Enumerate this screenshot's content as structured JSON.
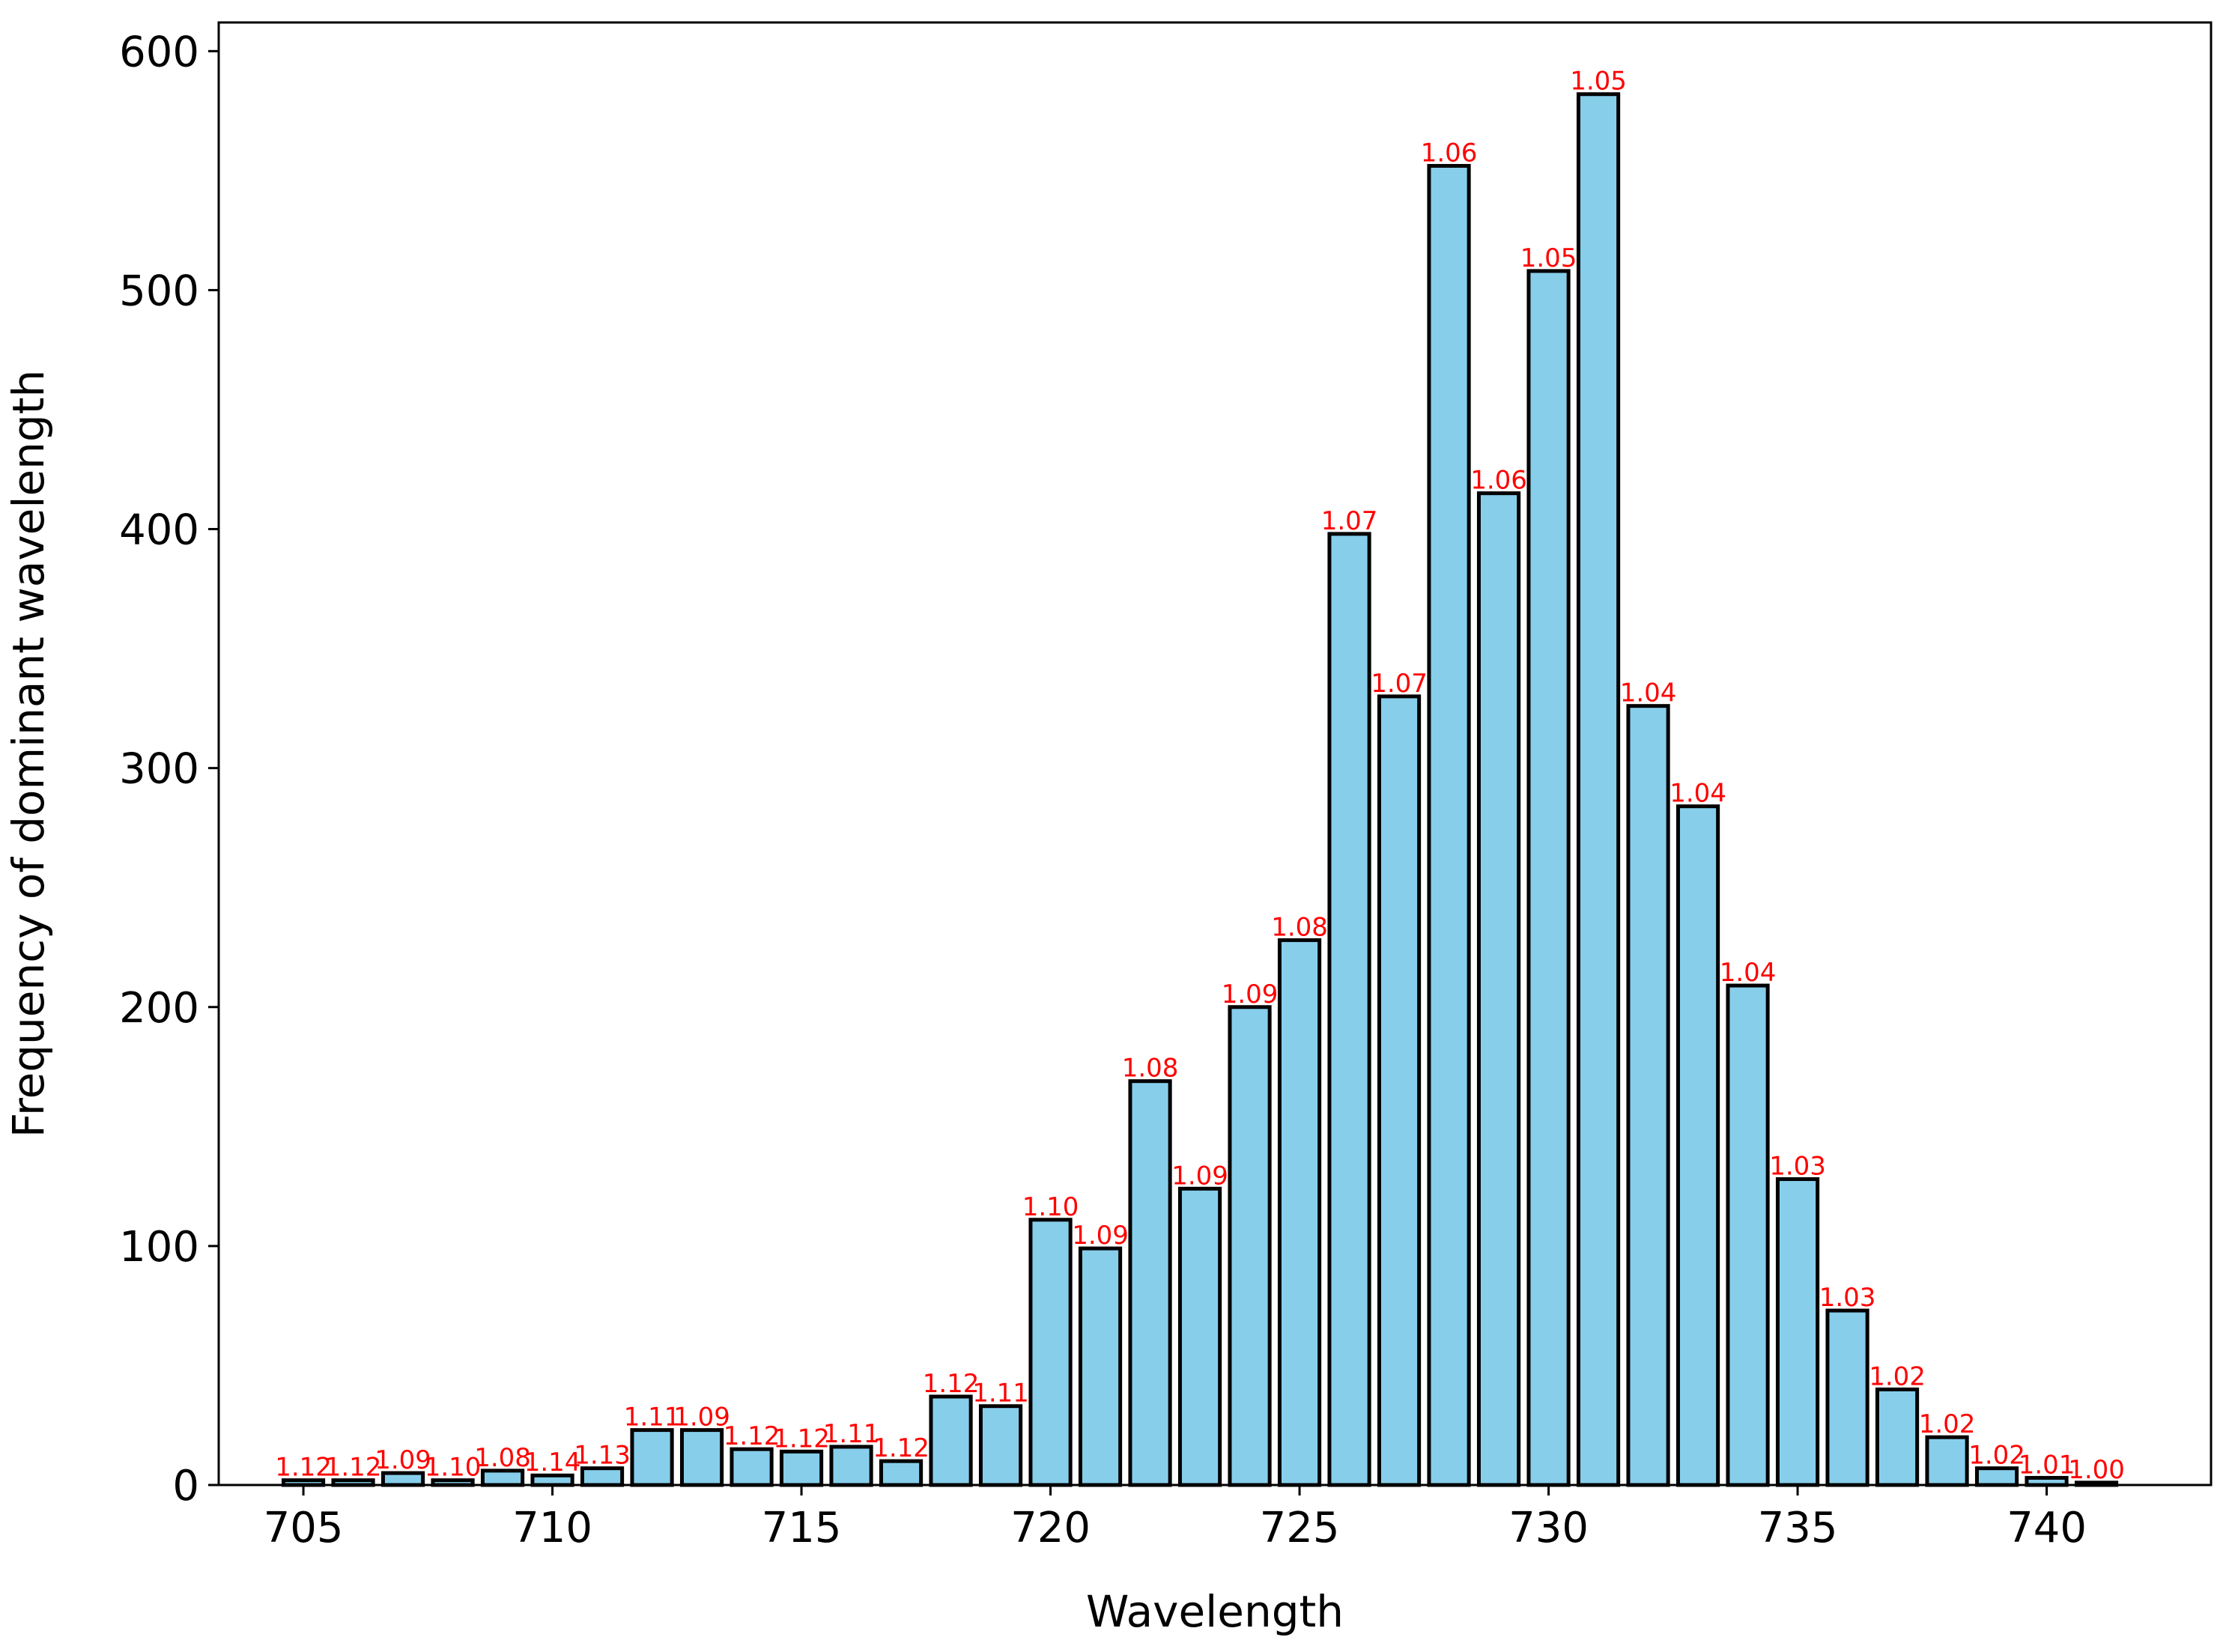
{
  "chart_data": {
    "type": "bar",
    "xlabel": "Wavelength",
    "ylabel": "Frequency of dominant wavelength",
    "xlim": [
      703.3,
      743.3
    ],
    "ylim": [
      0,
      612
    ],
    "xticks": [
      705,
      710,
      715,
      720,
      725,
      730,
      735,
      740
    ],
    "yticks": [
      0,
      100,
      200,
      300,
      400,
      500,
      600
    ],
    "grid": false,
    "legend": "none",
    "colors": {
      "bar_fill": "#87CEEB",
      "bar_edge": "#000000",
      "bar_label": "#FF0000"
    },
    "bars": [
      {
        "x": 705,
        "value": 2,
        "label": "1.12"
      },
      {
        "x": 706,
        "value": 2,
        "label": "1.12"
      },
      {
        "x": 707,
        "value": 5,
        "label": "1.09"
      },
      {
        "x": 708,
        "value": 2,
        "label": "1.10"
      },
      {
        "x": 709,
        "value": 6,
        "label": "1.08"
      },
      {
        "x": 710,
        "value": 4,
        "label": "1.14"
      },
      {
        "x": 711,
        "value": 7,
        "label": "1.13"
      },
      {
        "x": 712,
        "value": 23,
        "label": "1.11"
      },
      {
        "x": 713,
        "value": 23,
        "label": "1.09"
      },
      {
        "x": 714,
        "value": 15,
        "label": "1.12"
      },
      {
        "x": 715,
        "value": 14,
        "label": "1.12"
      },
      {
        "x": 716,
        "value": 16,
        "label": "1.11"
      },
      {
        "x": 717,
        "value": 10,
        "label": "1.12"
      },
      {
        "x": 718,
        "value": 37,
        "label": "1.12"
      },
      {
        "x": 719,
        "value": 33,
        "label": "1.11"
      },
      {
        "x": 720,
        "value": 111,
        "label": "1.10"
      },
      {
        "x": 721,
        "value": 99,
        "label": "1.09"
      },
      {
        "x": 722,
        "value": 169,
        "label": "1.08"
      },
      {
        "x": 723,
        "value": 124,
        "label": "1.09"
      },
      {
        "x": 724,
        "value": 200,
        "label": "1.09"
      },
      {
        "x": 725,
        "value": 228,
        "label": "1.08"
      },
      {
        "x": 726,
        "value": 398,
        "label": "1.07"
      },
      {
        "x": 727,
        "value": 330,
        "label": "1.07"
      },
      {
        "x": 728,
        "value": 552,
        "label": "1.06"
      },
      {
        "x": 729,
        "value": 415,
        "label": "1.06"
      },
      {
        "x": 730,
        "value": 508,
        "label": "1.05"
      },
      {
        "x": 731,
        "value": 582,
        "label": "1.05"
      },
      {
        "x": 732,
        "value": 326,
        "label": "1.04"
      },
      {
        "x": 733,
        "value": 284,
        "label": "1.04"
      },
      {
        "x": 734,
        "value": 209,
        "label": "1.04"
      },
      {
        "x": 735,
        "value": 128,
        "label": "1.03"
      },
      {
        "x": 736,
        "value": 73,
        "label": "1.03"
      },
      {
        "x": 737,
        "value": 40,
        "label": "1.02"
      },
      {
        "x": 738,
        "value": 20,
        "label": "1.02"
      },
      {
        "x": 739,
        "value": 7,
        "label": "1.02"
      },
      {
        "x": 740,
        "value": 3,
        "label": "1.01"
      },
      {
        "x": 741,
        "value": 1,
        "label": "1.00"
      }
    ]
  }
}
